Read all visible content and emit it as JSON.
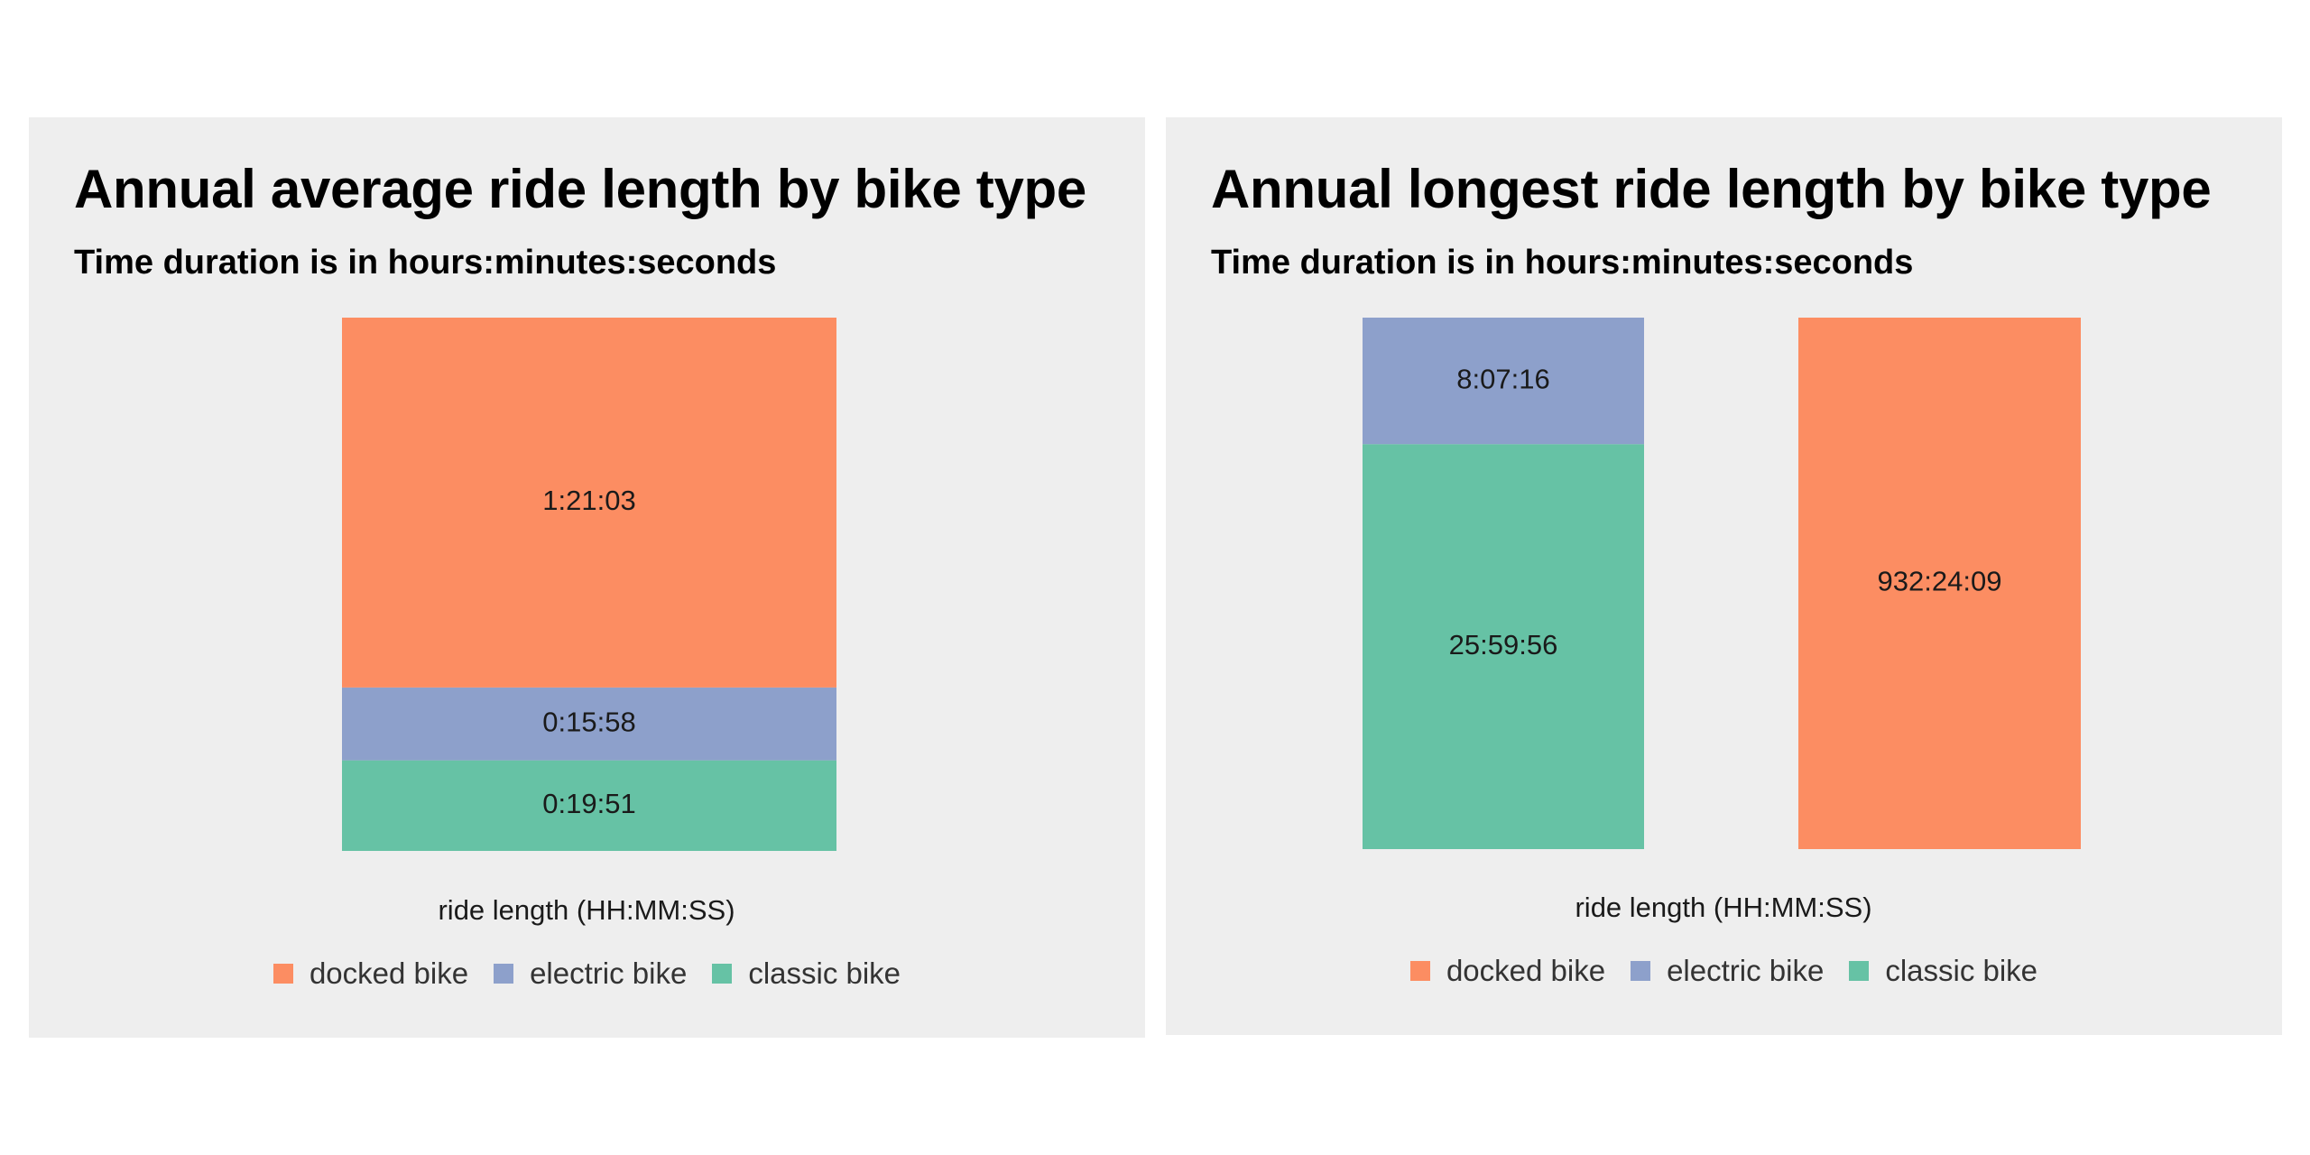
{
  "chart_data": [
    {
      "type": "bar",
      "title": "Annual average ride length by bike type",
      "subtitle": "Time duration is in hours:minutes:seconds",
      "xlabel": "ride length (HH:MM:SS)",
      "stacked": true,
      "grid": false,
      "legend_position": "bottom",
      "legend": [
        "docked bike",
        "electric bike",
        "classic bike"
      ],
      "series": [
        {
          "name": "classic bike",
          "value_seconds": 1191,
          "label": "0:19:51",
          "color": "#66c2a5"
        },
        {
          "name": "electric bike",
          "value_seconds": 958,
          "label": "0:15:58",
          "color": "#8da0cb"
        },
        {
          "name": "docked bike",
          "value_seconds": 4863,
          "label": "1:21:03",
          "color": "#fc8d62"
        }
      ]
    },
    {
      "type": "bar",
      "title": "Annual longest ride length by bike type",
      "subtitle": "Time duration is in hours:minutes:seconds",
      "xlabel": "ride length (HH:MM:SS)",
      "stacked": true,
      "grid": false,
      "legend_position": "bottom",
      "legend": [
        "docked bike",
        "electric bike",
        "classic bike"
      ],
      "bars": [
        {
          "segments": [
            {
              "name": "classic bike",
              "value_seconds": 93596,
              "label": "25:59:56",
              "color": "#66c2a5"
            },
            {
              "name": "electric bike",
              "value_seconds": 29236,
              "label": "8:07:16",
              "color": "#8da0cb"
            }
          ]
        },
        {
          "segments": [
            {
              "name": "docked bike",
              "value_seconds": 3356649,
              "label": "932:24:09",
              "color": "#fc8d62"
            }
          ]
        }
      ]
    }
  ],
  "legend_colors": {
    "docked bike": "#fc8d62",
    "electric bike": "#8da0cb",
    "classic bike": "#66c2a5"
  }
}
